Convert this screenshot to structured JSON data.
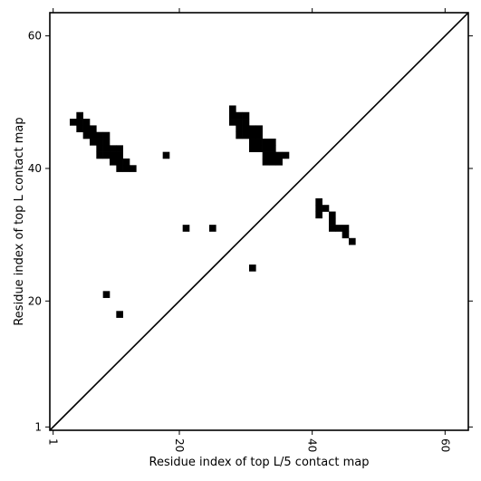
{
  "chart_data": {
    "type": "heatmap",
    "title": "",
    "xlabel": "Residue index of top L/5 contact map",
    "ylabel": "Residue index of top L contact map",
    "xlim": [
      0.5,
      63.5
    ],
    "ylim": [
      0.5,
      63.5
    ],
    "x_ticks": [
      1,
      20,
      40,
      60
    ],
    "y_ticks": [
      1,
      20,
      40,
      60
    ],
    "x_tick_labels": [
      "1",
      "20",
      "40",
      "60"
    ],
    "y_tick_labels": [
      "1",
      "20",
      "40",
      "60"
    ],
    "x_tick_rotation": 90,
    "diagonal": true,
    "grid": false,
    "mark_color": "#000000",
    "background_color": "#ffffff",
    "contacts_top_L": [
      [
        4,
        47
      ],
      [
        5,
        47
      ],
      [
        5,
        48
      ],
      [
        6,
        47
      ],
      [
        5,
        46
      ],
      [
        6,
        46
      ],
      [
        7,
        46
      ],
      [
        6,
        45
      ],
      [
        7,
        45
      ],
      [
        8,
        45
      ],
      [
        9,
        45
      ],
      [
        7,
        44
      ],
      [
        8,
        44
      ],
      [
        9,
        44
      ],
      [
        8,
        43
      ],
      [
        9,
        43
      ],
      [
        10,
        43
      ],
      [
        11,
        43
      ],
      [
        8,
        42
      ],
      [
        9,
        42
      ],
      [
        10,
        42
      ],
      [
        11,
        42
      ],
      [
        10,
        41
      ],
      [
        11,
        41
      ],
      [
        12,
        41
      ],
      [
        11,
        40
      ],
      [
        12,
        40
      ],
      [
        13,
        40
      ],
      [
        18,
        42
      ],
      [
        28,
        49
      ],
      [
        28,
        48
      ],
      [
        29,
        48
      ],
      [
        30,
        48
      ],
      [
        28,
        47
      ],
      [
        29,
        47
      ],
      [
        30,
        47
      ],
      [
        29,
        46
      ],
      [
        30,
        46
      ],
      [
        31,
        46
      ],
      [
        32,
        46
      ],
      [
        29,
        45
      ],
      [
        30,
        45
      ],
      [
        31,
        45
      ],
      [
        32,
        45
      ],
      [
        31,
        44
      ],
      [
        32,
        44
      ],
      [
        33,
        44
      ],
      [
        34,
        44
      ],
      [
        31,
        43
      ],
      [
        32,
        43
      ],
      [
        33,
        43
      ],
      [
        34,
        43
      ],
      [
        33,
        42
      ],
      [
        34,
        42
      ],
      [
        35,
        42
      ],
      [
        36,
        42
      ],
      [
        33,
        41
      ],
      [
        34,
        41
      ],
      [
        35,
        41
      ]
    ],
    "contacts_top_L5": [
      [
        21,
        31
      ],
      [
        25,
        31
      ],
      [
        31,
        25
      ],
      [
        9,
        21
      ],
      [
        11,
        18
      ],
      [
        41,
        35
      ],
      [
        41,
        34
      ],
      [
        42,
        34
      ],
      [
        41,
        33
      ],
      [
        43,
        33
      ],
      [
        43,
        32
      ],
      [
        43,
        31
      ],
      [
        44,
        31
      ],
      [
        45,
        31
      ],
      [
        45,
        30
      ],
      [
        46,
        29
      ]
    ]
  }
}
